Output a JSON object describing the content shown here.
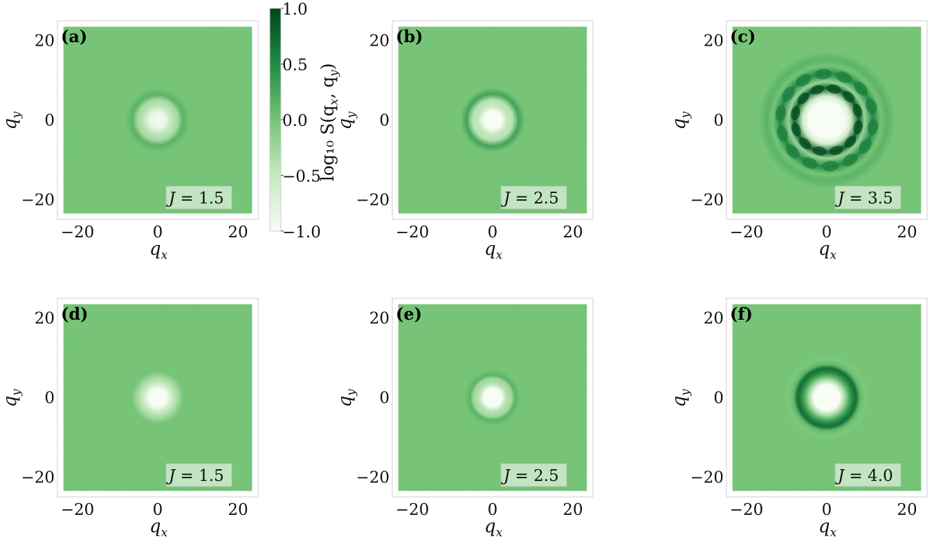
{
  "chart_data": {
    "type": "heatmap",
    "colormap": "Greens",
    "colormap_stops": [
      "#f7fcf5",
      "#c7e9c0",
      "#74c476",
      "#238b45",
      "#00441b"
    ],
    "value_label": "log10 S(qx, qy)",
    "colorbar": {
      "label": "log₁₀ S(q",
      "label_sub1": "x",
      "label_mid": ", q",
      "label_sub2": "y",
      "label_end": ")",
      "range": [
        -1.0,
        1.0
      ],
      "ticks": [
        "1.0",
        "0.5",
        "0.0",
        "−0.5",
        "−1.0"
      ],
      "tick_values": [
        1.0,
        0.5,
        0.0,
        -0.5,
        -1.0
      ]
    },
    "xlim": [
      -25,
      25
    ],
    "ylim": [
      -25,
      25
    ],
    "data_extent": [
      -23.5,
      23.5
    ],
    "x_ticks": [
      "−20",
      "0",
      "20"
    ],
    "x_tick_values": [
      -20,
      0,
      20
    ],
    "y_ticks": [
      "20",
      "0",
      "−20"
    ],
    "y_tick_values": [
      20,
      0,
      -20
    ],
    "xlabel": "q",
    "xlabel_sub": "x",
    "ylabel": "q",
    "ylabel_sub": "y",
    "background_level": 0.0,
    "panels": [
      {
        "label": "(a)",
        "J": "1.5",
        "J_text": "= 1.5",
        "profile": [
          {
            "r": 0,
            "v": -0.95
          },
          {
            "r": 2,
            "v": -0.85
          },
          {
            "r": 3.5,
            "v": -0.45
          },
          {
            "r": 5,
            "v": -0.3
          },
          {
            "r": 6.3,
            "v": 0.15
          },
          {
            "r": 8,
            "v": 0.0
          }
        ]
      },
      {
        "label": "(b)",
        "J": "2.5",
        "J_text": "= 2.5",
        "profile": [
          {
            "r": 0,
            "v": -1.0
          },
          {
            "r": 2.2,
            "v": -1.0
          },
          {
            "r": 3.5,
            "v": -0.5
          },
          {
            "r": 5,
            "v": -0.4
          },
          {
            "r": 6.5,
            "v": 0.3
          },
          {
            "r": 8,
            "v": 0.0
          }
        ]
      },
      {
        "label": "(c)",
        "J": "3.5",
        "J_text": "= 3.5",
        "profile": [
          {
            "r": 0,
            "v": -1.0
          },
          {
            "r": 4.5,
            "v": -1.0
          },
          {
            "r": 6,
            "v": -0.6
          },
          {
            "r": 8,
            "v": 0.8
          },
          {
            "r": 9.5,
            "v": -0.2
          },
          {
            "r": 11.5,
            "v": 0.5
          },
          {
            "r": 13.5,
            "v": 0.0
          },
          {
            "r": 15,
            "v": 0.15
          },
          {
            "r": 17,
            "v": 0.0
          }
        ]
      },
      {
        "label": "(d)",
        "J": "1.5",
        "J_text": "= 1.5",
        "profile": [
          {
            "r": 0,
            "v": -1.0
          },
          {
            "r": 2.2,
            "v": -1.0
          },
          {
            "r": 3.5,
            "v": -0.55
          },
          {
            "r": 5,
            "v": -0.3
          },
          {
            "r": 6.5,
            "v": 0.0
          }
        ]
      },
      {
        "label": "(e)",
        "J": "2.5",
        "J_text": "= 2.5",
        "profile": [
          {
            "r": 0,
            "v": -1.0
          },
          {
            "r": 2.2,
            "v": -1.0
          },
          {
            "r": 3.5,
            "v": -0.4
          },
          {
            "r": 4.8,
            "v": -0.25
          },
          {
            "r": 5.6,
            "v": 0.15
          },
          {
            "r": 7,
            "v": 0.0
          }
        ]
      },
      {
        "label": "(f)",
        "J": "4.0",
        "J_text": "= 4.0",
        "profile": [
          {
            "r": 0,
            "v": -1.0
          },
          {
            "r": 3.2,
            "v": -1.0
          },
          {
            "r": 4.5,
            "v": -0.3
          },
          {
            "r": 5.5,
            "v": 0.2
          },
          {
            "r": 6.5,
            "v": 0.55
          },
          {
            "r": 7.3,
            "v": 0.7
          },
          {
            "r": 8.3,
            "v": 0.1
          },
          {
            "r": 9.5,
            "v": -0.05
          },
          {
            "r": 11,
            "v": 0.0
          }
        ]
      }
    ]
  }
}
